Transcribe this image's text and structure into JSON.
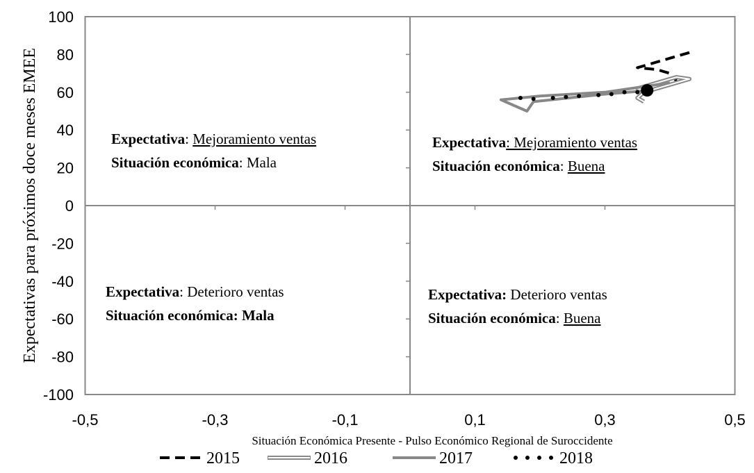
{
  "chart_data": {
    "type": "line",
    "x_label": "Situación Económica Presente - Pulso Económico Regional de Suroccidente",
    "y_label": "Expectativas  para próximos doce meses EMEE",
    "xlim": [
      -0.5,
      0.5
    ],
    "xticks": [
      {
        "value": -0.5,
        "label": "-0,5"
      },
      {
        "value": -0.3,
        "label": "-0,3"
      },
      {
        "value": -0.1,
        "label": "-0,1"
      },
      {
        "value": 0.1,
        "label": "0,1"
      },
      {
        "value": 0.3,
        "label": "0,3"
      },
      {
        "value": 0.5,
        "label": "0,5"
      }
    ],
    "ylim": [
      -100,
      100
    ],
    "yticks": [
      100,
      80,
      60,
      40,
      20,
      0,
      -20,
      -40,
      -60,
      -80,
      -100
    ],
    "series": [
      {
        "name": "2015",
        "color": "#000000",
        "style": "dashed",
        "x": [
          0.43,
          0.4,
          0.35,
          0.38,
          0.4,
          0.41
        ],
        "values": [
          81,
          78,
          73,
          72,
          70,
          66
        ]
      },
      {
        "name": "2016",
        "color": "#888888",
        "style": "double",
        "x": [
          0.36,
          0.35,
          0.36,
          0.43,
          0.41,
          0.35,
          0.37
        ],
        "values": [
          55,
          57,
          60,
          67,
          68,
          62,
          60
        ]
      },
      {
        "name": "2017",
        "color": "#888888",
        "style": "solid",
        "x": [
          0.4,
          0.3,
          0.2,
          0.14,
          0.18,
          0.19,
          0.3,
          0.37
        ],
        "values": [
          65,
          60,
          58,
          56,
          50,
          55,
          59,
          61
        ]
      },
      {
        "name": "2018",
        "color": "#000000",
        "style": "dotted",
        "x": [
          0.17,
          0.19,
          0.22,
          0.24,
          0.26,
          0.29,
          0.31,
          0.33,
          0.35,
          0.365
        ],
        "values": [
          57,
          56.5,
          57,
          57.5,
          58,
          58.5,
          59,
          60,
          60,
          61
        ]
      }
    ],
    "annotations": [
      [
        [
          "Expectativa",
          ": ",
          "Mejoramiento ventas"
        ],
        [
          "Situación económica",
          ": Mala"
        ]
      ],
      [
        [
          "Expectativa",
          ": Mejoramiento ventas"
        ],
        [
          "Situación económica",
          ": ",
          "Buena"
        ]
      ],
      [
        [
          "Expectativa",
          ": Deterioro ventas"
        ],
        [
          "Situación económica: Mala"
        ]
      ],
      [
        [
          "Expectativa:",
          " Deterioro ventas"
        ],
        [
          "Situación económica",
          ": ",
          "Buena"
        ]
      ]
    ]
  }
}
